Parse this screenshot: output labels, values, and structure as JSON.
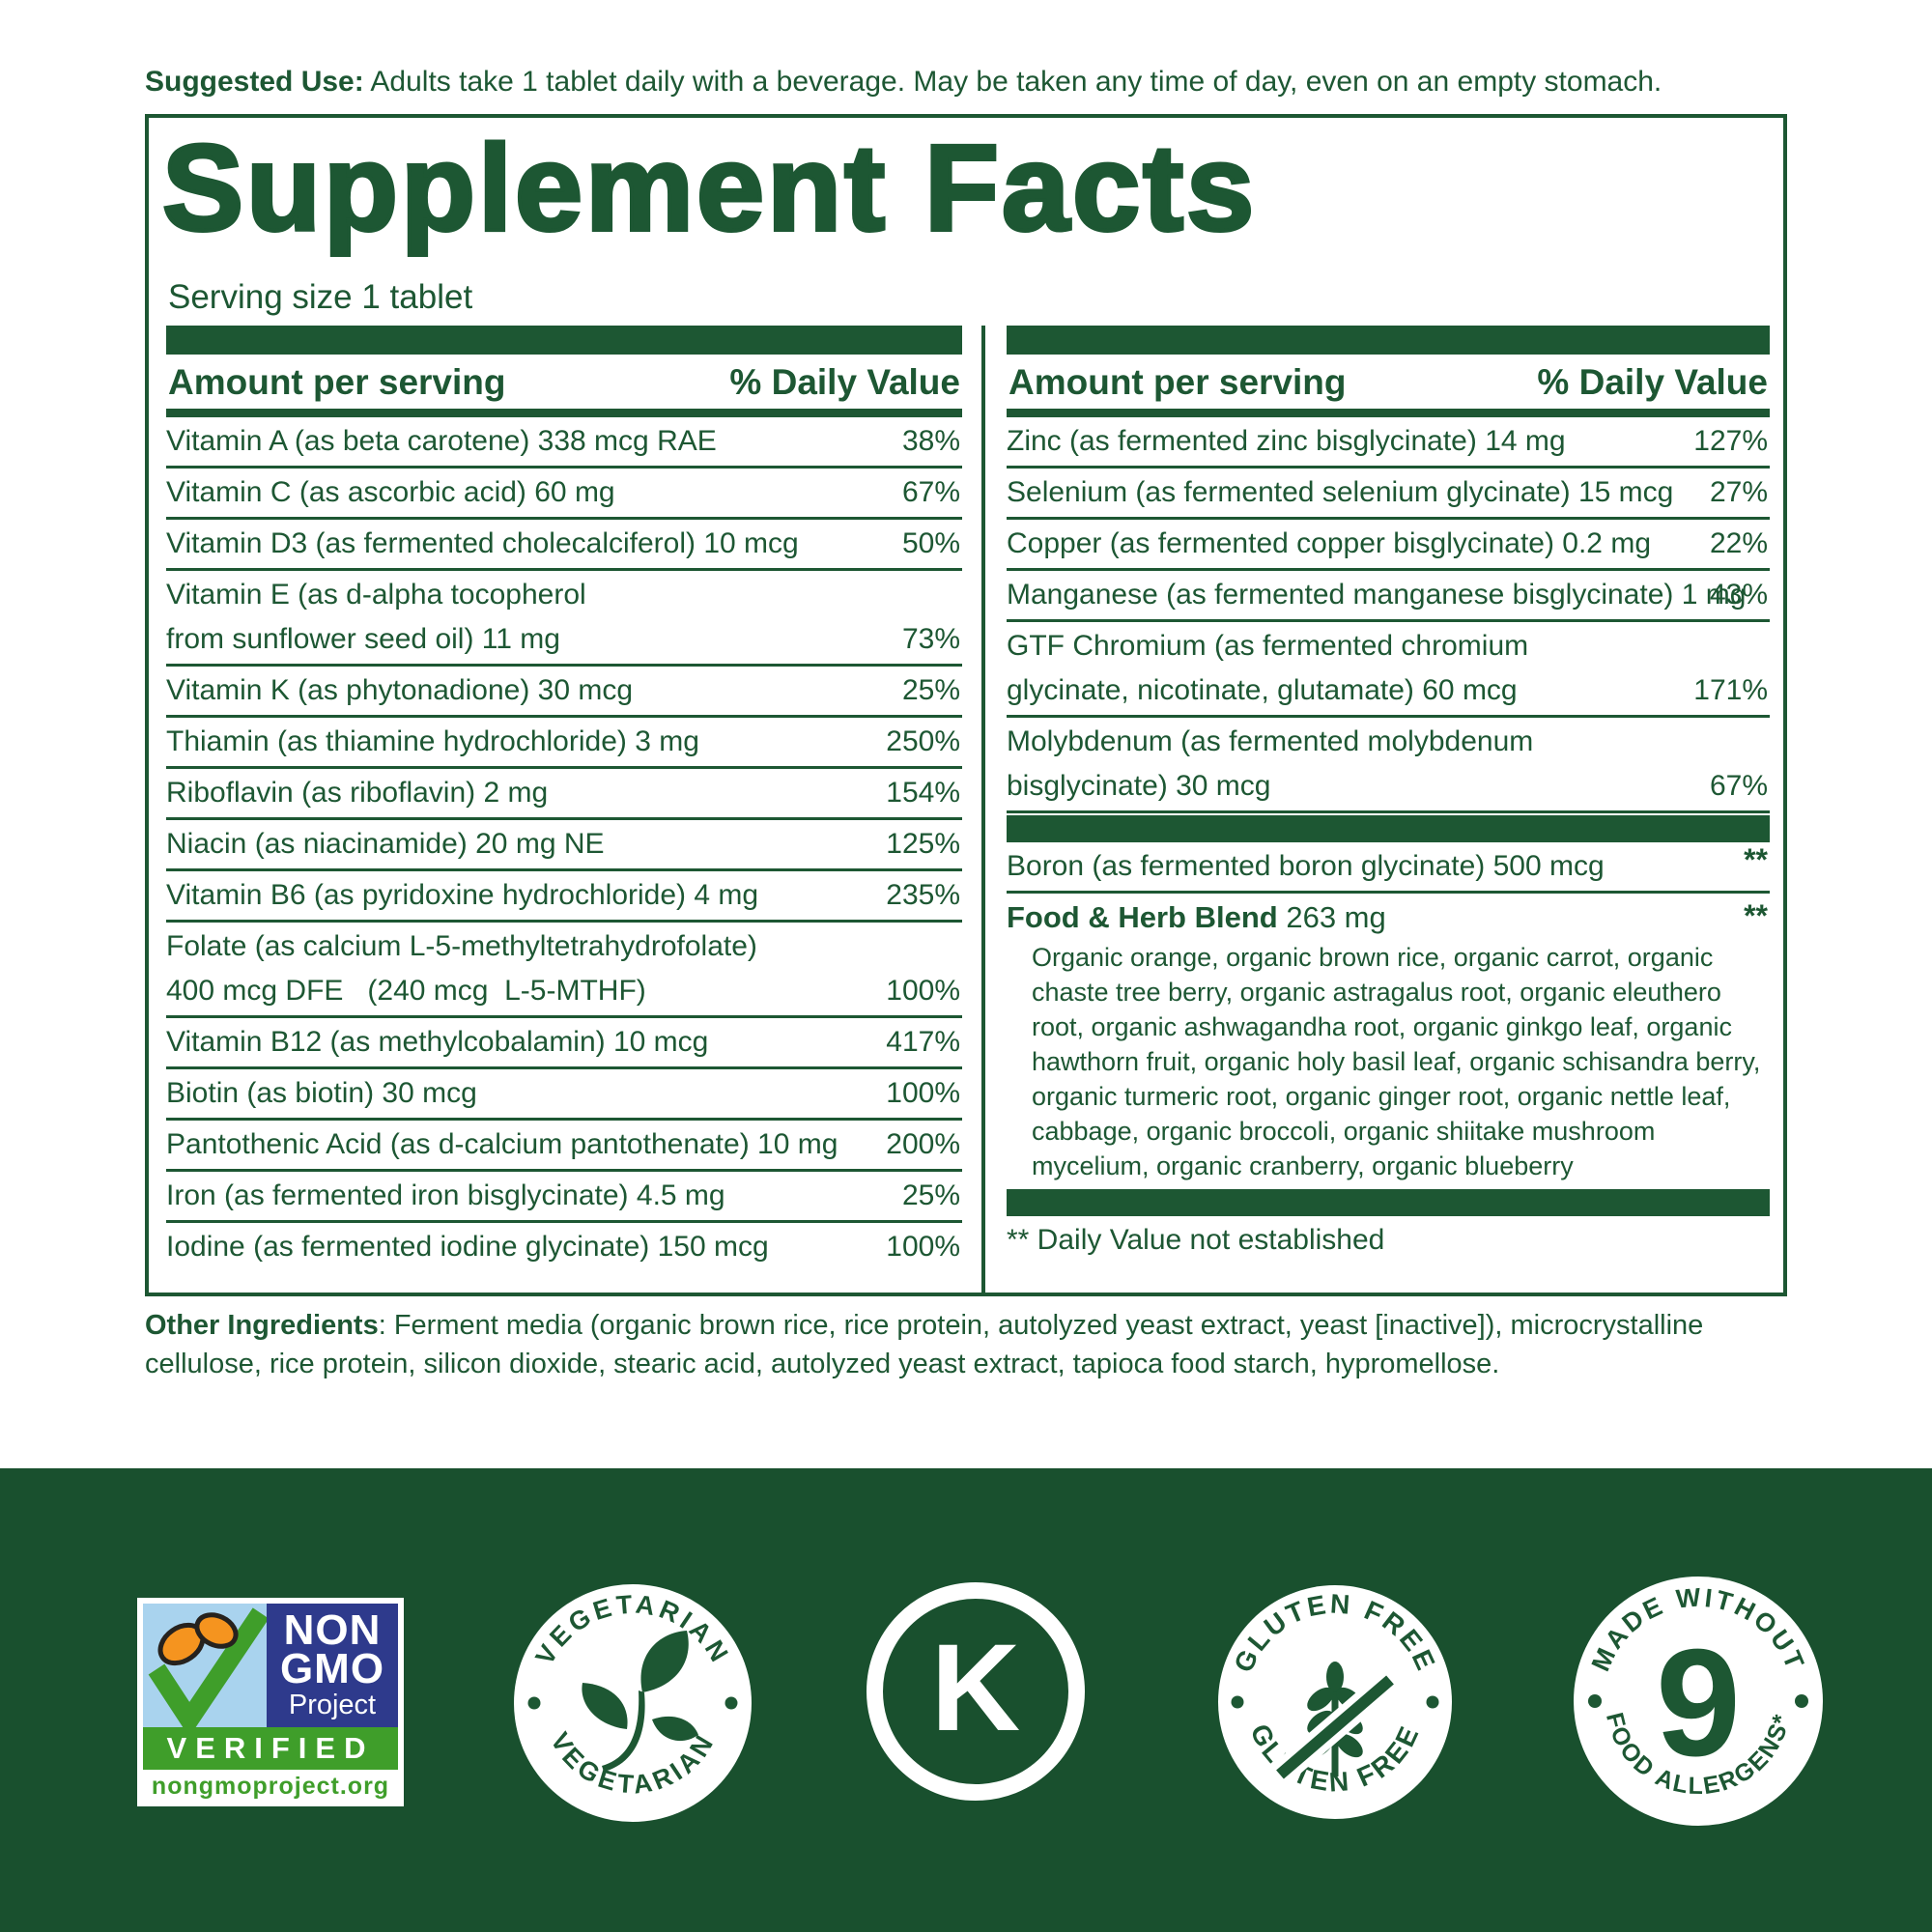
{
  "colors": {
    "label_green": "#1d5733",
    "band_green": "#19502e",
    "nongmo_blue": "#2e3a8c",
    "nongmo_sky": "#a9d3ee",
    "nongmo_green": "#3f9e2a",
    "butterfly_orange": "#f5941f"
  },
  "suggested_use": {
    "label": "Suggested Use:",
    "text": " Adults take 1 tablet daily with a beverage. May be taken any time of day, even on an empty stomach."
  },
  "panel": {
    "title": "Supplement Facts",
    "serving_size": "Serving size 1 tablet",
    "header": {
      "amount": "Amount per serving",
      "dv": "% Daily Value"
    },
    "left_rows": [
      {
        "lines": [
          "Vitamin A (as beta carotene) 338 mcg RAE"
        ],
        "dv": "38%"
      },
      {
        "lines": [
          "Vitamin C (as ascorbic acid) 60 mg"
        ],
        "dv": "67%"
      },
      {
        "lines": [
          "Vitamin D3 (as fermented cholecalciferol) 10 mcg"
        ],
        "dv": "50%"
      },
      {
        "lines": [
          "Vitamin E (as d-alpha tocopherol",
          "from sunflower seed oil) 11 mg"
        ],
        "dv": "73%"
      },
      {
        "lines": [
          "Vitamin K (as phytonadione) 30 mcg"
        ],
        "dv": "25%"
      },
      {
        "lines": [
          "Thiamin (as thiamine hydrochloride) 3 mg"
        ],
        "dv": "250%"
      },
      {
        "lines": [
          "Riboflavin (as riboflavin) 2 mg"
        ],
        "dv": "154%"
      },
      {
        "lines": [
          "Niacin (as niacinamide) 20 mg NE"
        ],
        "dv": "125%"
      },
      {
        "lines": [
          "Vitamin B6 (as pyridoxine hydrochloride) 4 mg"
        ],
        "dv": "235%"
      },
      {
        "lines": [
          "Folate (as calcium L-5-methyltetrahydrofolate)",
          "400 mcg DFE   (240 mcg  L-5-MTHF)"
        ],
        "dv": "100%"
      },
      {
        "lines": [
          "Vitamin B12 (as methylcobalamin) 10 mcg"
        ],
        "dv": "417%"
      },
      {
        "lines": [
          "Biotin (as biotin) 30 mcg"
        ],
        "dv": "100%"
      },
      {
        "lines": [
          "Pantothenic Acid (as d-calcium pantothenate) 10 mg"
        ],
        "dv": "200%"
      },
      {
        "lines": [
          "Iron (as fermented iron bisglycinate) 4.5 mg"
        ],
        "dv": "25%"
      },
      {
        "lines": [
          "Iodine (as fermented iodine glycinate) 150 mcg"
        ],
        "dv": "100%"
      }
    ],
    "right_rows": [
      {
        "lines": [
          "Zinc (as fermented zinc bisglycinate) 14 mg"
        ],
        "dv": "127%"
      },
      {
        "lines": [
          "Selenium (as fermented selenium glycinate) 15 mcg"
        ],
        "dv": "27%"
      },
      {
        "lines": [
          "Copper (as fermented copper bisglycinate) 0.2 mg"
        ],
        "dv": "22%"
      },
      {
        "lines": [
          "Manganese (as fermented manganese bisglycinate) 1 mg"
        ],
        "dv": "43%"
      },
      {
        "lines": [
          "GTF Chromium (as fermented chromium",
          "glycinate, nicotinate, glutamate) 60 mcg"
        ],
        "dv": "171%"
      },
      {
        "lines": [
          "Molybdenum (as fermented molybdenum",
          "bisglycinate) 30 mcg"
        ],
        "dv": "67%"
      }
    ],
    "boron_rows": [
      {
        "lines": [
          "Boron (as fermented boron glycinate) 500 mcg"
        ],
        "dv": "**"
      }
    ],
    "blend": {
      "name": "Food & Herb Blend",
      "amount": "263 mg",
      "dv": "**",
      "ingredients": "Organic orange, organic brown rice, organic carrot, organic chaste tree berry, organic astragalus root, organic eleuthero root, organic ashwagandha root, organic ginkgo leaf, organic hawthorn fruit, organic holy basil leaf, organic schisandra berry, organic turmeric root, organic ginger root, organic nettle leaf, cabbage, organic broccoli, organic shiitake mushroom mycelium, organic cranberry, organic blueberry"
    },
    "footnote": "** Daily Value not established"
  },
  "other_ingredients": {
    "label": "Other Ingredients",
    "text": ": Ferment media (organic brown rice, rice protein, autolyzed yeast extract, yeast [inactive]), microcrystalline cellulose, rice protein, silicon dioxide, stearic acid, autolyzed yeast extract, tapioca food starch, hypromellose."
  },
  "badges": {
    "nongmo": {
      "line1": "NON",
      "line2": "GMO",
      "line3": "Project",
      "verified": "VERIFIED",
      "url": "nongmoproject.org"
    },
    "vegetarian": {
      "top": "VEGETARIAN",
      "bottom": "VEGETARIAN"
    },
    "kosher": {
      "letter": "K"
    },
    "gluten_free": {
      "top": "GLUTEN FREE",
      "bottom": "GLUTEN FREE"
    },
    "allergens": {
      "top": "MADE WITHOUT",
      "number": "9",
      "bottom": "FOOD ALLERGENS*"
    }
  }
}
